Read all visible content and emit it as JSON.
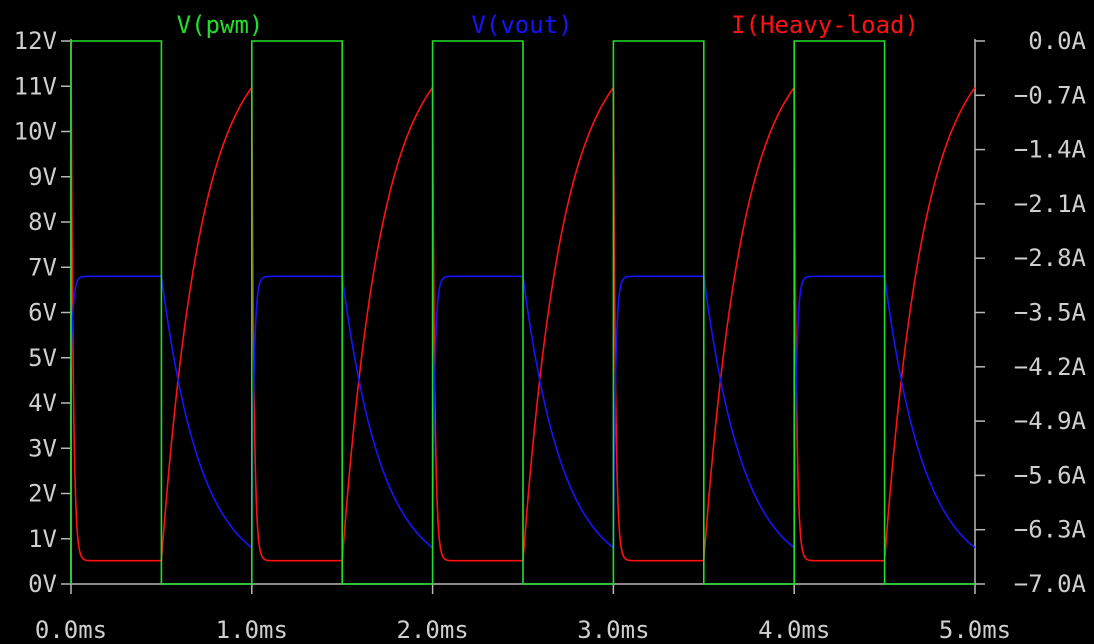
{
  "colors": {
    "background": "#000000",
    "axis": "#b8b8b8",
    "tick_text": "#cfcfcf",
    "pwm": "#22e02a",
    "vout": "#1414ff",
    "load": "#ff1111"
  },
  "chart_data": {
    "type": "line",
    "title": "",
    "grid": false,
    "legend_position": "top",
    "x_axis": {
      "range": [
        0,
        5
      ],
      "unit": "ms",
      "ticks": [
        0,
        1,
        2,
        3,
        4,
        5
      ],
      "tick_labels": [
        "0.0ms",
        "1.0ms",
        "2.0ms",
        "3.0ms",
        "4.0ms",
        "5.0ms"
      ]
    },
    "y_left_axis": {
      "range": [
        0,
        12
      ],
      "unit": "V",
      "ticks": [
        0,
        1,
        2,
        3,
        4,
        5,
        6,
        7,
        8,
        9,
        10,
        11,
        12
      ],
      "tick_labels": [
        "0V",
        "1V",
        "2V",
        "3V",
        "4V",
        "5V",
        "6V",
        "7V",
        "8V",
        "9V",
        "10V",
        "11V",
        "12V"
      ]
    },
    "y_right_axis": {
      "range": [
        -7.0,
        0.0
      ],
      "unit": "A",
      "ticks": [
        0.0,
        -0.7,
        -1.4,
        -2.1,
        -2.8,
        -3.5,
        -4.2,
        -4.9,
        -5.6,
        -6.3,
        -7.0
      ],
      "tick_labels": [
        "0.0A",
        "−0.7A",
        "−1.4A",
        "−2.1A",
        "−2.8A",
        "−3.5A",
        "−4.2A",
        "−4.9A",
        "−5.6A",
        "−6.3A",
        "−7.0A"
      ]
    },
    "series": [
      {
        "name": "V(pwm)",
        "axis": "left",
        "color": "#22e02a",
        "shape": "square-wave",
        "period_ms": 1.0,
        "high_value_V": 12,
        "low_value_V": 0,
        "transitions_ms": [
          0,
          0.5,
          1.0,
          1.5,
          2.0,
          2.5,
          3.0,
          3.5,
          4.0,
          4.5,
          5.0
        ]
      },
      {
        "name": "V(vout)",
        "axis": "left",
        "color": "#1414ff",
        "shape": "rc-charge-discharge",
        "plateau_V": 6.8,
        "trough_V": 0.8,
        "rise_time_constant_ms": 0.012,
        "fall_time_constant_ms": 0.22,
        "plateau_intervals_ms": [
          [
            0,
            0.5
          ],
          [
            1.0,
            1.5
          ],
          [
            2.0,
            2.5
          ],
          [
            3.0,
            3.5
          ],
          [
            4.0,
            4.5
          ]
        ],
        "decay_intervals_ms": [
          [
            0.5,
            1.0
          ],
          [
            1.5,
            2.0
          ],
          [
            2.5,
            3.0
          ],
          [
            3.5,
            4.0
          ],
          [
            4.5,
            5.0
          ]
        ]
      },
      {
        "name": "I(Heavy-load)",
        "axis": "right",
        "color": "#ff1111",
        "shape": "rc-charge-discharge",
        "floor_A": -6.7,
        "peak_A": -0.6,
        "rise_time_constant_ms": 0.22,
        "fall_time_constant_ms": 0.012,
        "floor_intervals_ms": [
          [
            0,
            0.5
          ],
          [
            1.0,
            1.5
          ],
          [
            2.0,
            2.5
          ],
          [
            3.0,
            3.5
          ],
          [
            4.0,
            4.5
          ]
        ],
        "rise_intervals_ms": [
          [
            0.5,
            1.0
          ],
          [
            1.5,
            2.0
          ],
          [
            2.5,
            3.0
          ],
          [
            3.5,
            4.0
          ],
          [
            4.5,
            5.0
          ]
        ]
      }
    ]
  }
}
